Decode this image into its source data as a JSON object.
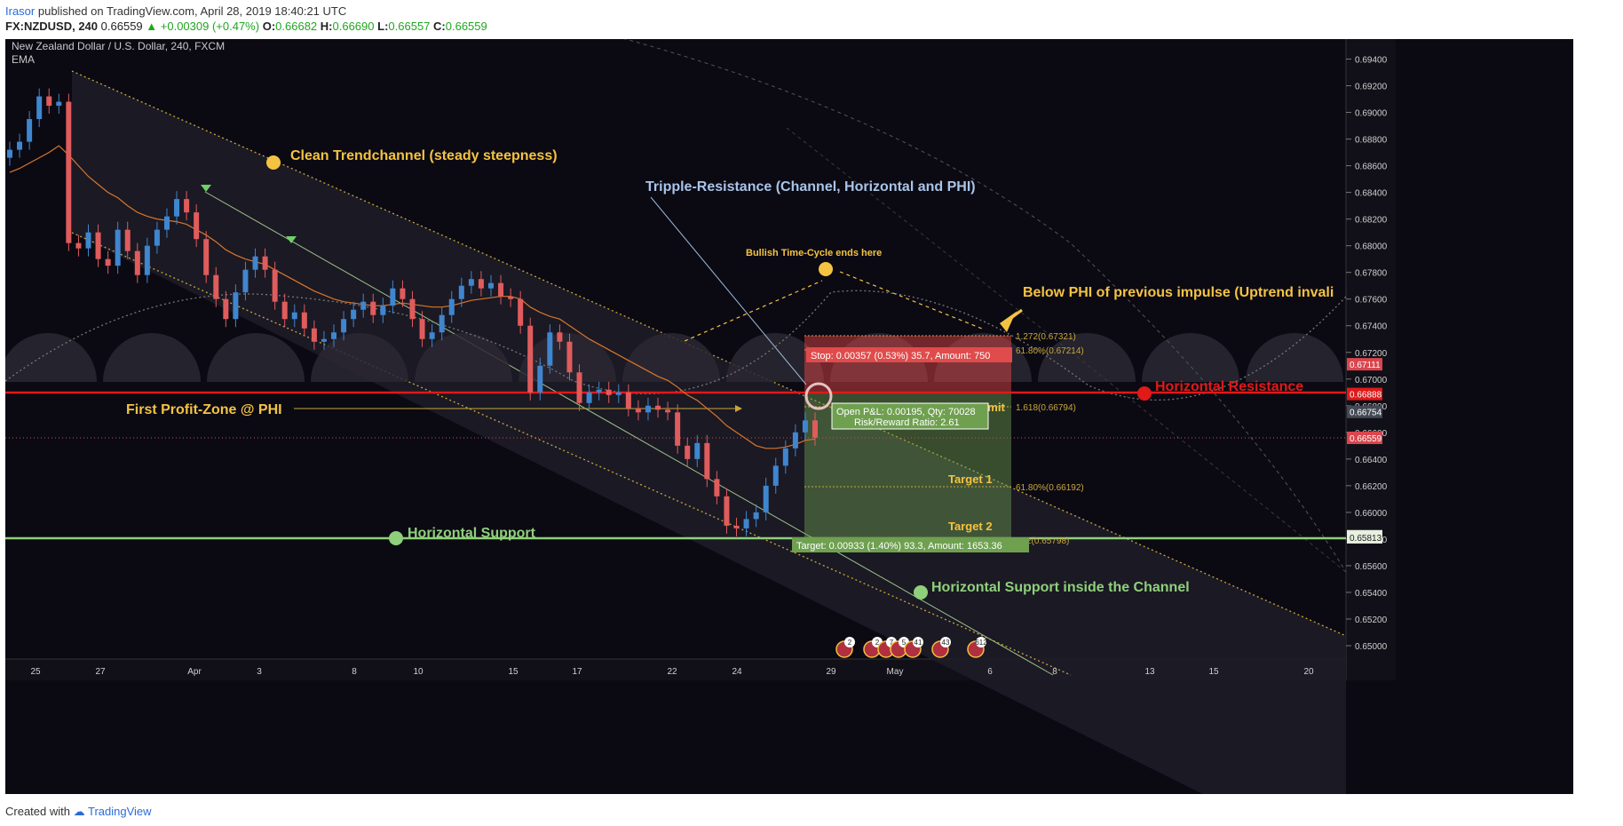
{
  "header": {
    "author": "Irasor",
    "published_text": "published on TradingView.com, April 28, 2019 18:40:21 UTC",
    "symbol": "FX:NZDUSD, 240",
    "last": "0.66559",
    "change": "▲ +0.00309 (+0.47%)",
    "open_label": "O:",
    "open": "0.66682",
    "high_label": "H:",
    "high": "0.66690",
    "low_label": "L:",
    "low": "0.66557",
    "close_label": "C:",
    "close": "0.66559"
  },
  "legend": {
    "title": "New Zealand Dollar / U.S. Dollar, 240, FXCM",
    "indicator": "EMA"
  },
  "footer": {
    "created_with": "Created with",
    "brand": "TradingView"
  },
  "chart_data": {
    "type": "candlestick",
    "symbol": "NZDUSD",
    "timeframe": "240",
    "ylim": [
      0.649,
      0.6955
    ],
    "y_ticks": [
      "0.69400",
      "0.69200",
      "0.69000",
      "0.68800",
      "0.68600",
      "0.68400",
      "0.68200",
      "0.68000",
      "0.67800",
      "0.67600",
      "0.67400",
      "0.67200",
      "0.67000",
      "0.66800",
      "0.66600",
      "0.66400",
      "0.66200",
      "0.66000",
      "0.65800",
      "0.65600",
      "0.65400",
      "0.65200",
      "0.65000"
    ],
    "x_ticks": [
      "25",
      "27",
      "Apr",
      "3",
      "8",
      "10",
      "15",
      "17",
      "22",
      "24",
      "29",
      "May",
      "6",
      "8",
      "13",
      "15",
      "20"
    ],
    "price_tags": [
      {
        "value": "0.67111",
        "color": "#d9464e"
      },
      {
        "value": "0.66888",
        "color": "#e01919"
      },
      {
        "value": "0.66754",
        "color": "#444a55"
      },
      {
        "value": "0.66559",
        "color": "#d9464e"
      },
      {
        "value": "0.65821",
        "color": "#e8f0e0"
      },
      {
        "value": "0.65813",
        "color": "#e8f0e0"
      }
    ],
    "closes": [
      0.6872,
      0.6878,
      0.6895,
      0.6912,
      0.6905,
      0.6908,
      0.6802,
      0.6798,
      0.681,
      0.679,
      0.6785,
      0.6812,
      0.6796,
      0.6778,
      0.68,
      0.6812,
      0.6822,
      0.6835,
      0.6825,
      0.6805,
      0.6778,
      0.676,
      0.6745,
      0.6765,
      0.6782,
      0.6792,
      0.6782,
      0.6758,
      0.6745,
      0.675,
      0.6738,
      0.6728,
      0.673,
      0.6735,
      0.6745,
      0.6752,
      0.6758,
      0.6748,
      0.6755,
      0.6768,
      0.676,
      0.6745,
      0.673,
      0.6735,
      0.6748,
      0.676,
      0.677,
      0.6775,
      0.6768,
      0.6772,
      0.6762,
      0.676,
      0.674,
      0.669,
      0.671,
      0.6735,
      0.6728,
      0.6705,
      0.6682,
      0.669,
      0.6692,
      0.6688,
      0.669,
      0.6678,
      0.6675,
      0.668,
      0.6677,
      0.6675,
      0.665,
      0.664,
      0.6652,
      0.6625,
      0.6612,
      0.659,
      0.6588,
      0.6595,
      0.66,
      0.662,
      0.6635,
      0.6648,
      0.666,
      0.6669,
      0.6656
    ],
    "ema": [
      0.6855,
      0.6858,
      0.6862,
      0.6866,
      0.687,
      0.6875,
      0.6868,
      0.686,
      0.6852,
      0.6846,
      0.684,
      0.6836,
      0.683,
      0.6825,
      0.6822,
      0.682,
      0.6819,
      0.6818,
      0.6816,
      0.6812,
      0.6808,
      0.6803,
      0.6797,
      0.6793,
      0.679,
      0.6788,
      0.6786,
      0.6782,
      0.6778,
      0.6774,
      0.677,
      0.6766,
      0.6763,
      0.676,
      0.6758,
      0.6757,
      0.6756,
      0.6755,
      0.6755,
      0.6756,
      0.6757,
      0.6756,
      0.6755,
      0.6754,
      0.6754,
      0.6755,
      0.6757,
      0.6759,
      0.676,
      0.6761,
      0.6762,
      0.6762,
      0.676,
      0.6754,
      0.675,
      0.6747,
      0.6745,
      0.674,
      0.6735,
      0.673,
      0.6726,
      0.6722,
      0.6718,
      0.6714,
      0.671,
      0.6706,
      0.6702,
      0.6699,
      0.6694,
      0.6688,
      0.6684,
      0.6678,
      0.6672,
      0.6665,
      0.666,
      0.6655,
      0.665,
      0.6648,
      0.6648,
      0.6649,
      0.6651,
      0.6654,
      0.6655
    ],
    "levels": {
      "horizontal_resistance": 0.66888,
      "horizontal_support": 0.65821,
      "fib_1272": 0.67321,
      "fib_618_upper": 0.67214,
      "fib_1618": 0.66794,
      "fib_618_lower": 0.66192,
      "fib_lower": 0.65798
    },
    "annotations": {
      "clean_trendchannel": "Clean Trendchannel  (steady steepness)",
      "tripple_resistance": "Tripple-Resistance (Channel, Horizontal and PHI)",
      "bullish_time_cycle": "Bullish Time-Cycle ends here",
      "below_phi": "Below PHI of previous impulse (Uptrend invali",
      "first_profit_zone": "First Profit-Zone @ PHI",
      "horizontal_resistance": "Horizontal Resistance",
      "horizontal_support": "Horizontal Support",
      "horizontal_support_channel": "Horizontal Support inside the Channel",
      "sell_limit": "Sell Limit",
      "target1": "Target 1",
      "target2": "Target 2",
      "fib_1272": "1.272(0.67321)",
      "fib_618_upper": "61.80%(0.67214)",
      "fib_1618": "1.618(0.66794)",
      "fib_618_lower": "61.80%(0.66192)",
      "fib_lower": "2(0.65798)",
      "stop_box": "Stop: 0.00357 (0.53%) 35.7, Amount: 750",
      "open_pnl": "Open P&L: 0.00195, Qty: 70028",
      "risk_reward": "Risk/Reward Ratio: 2.61",
      "target_box": "Target: 0.00933 (1.40%) 93.3, Amount: 1653.36"
    },
    "event_badges": [
      "2",
      "2",
      "7",
      "5",
      "41",
      "43",
      "612"
    ]
  }
}
